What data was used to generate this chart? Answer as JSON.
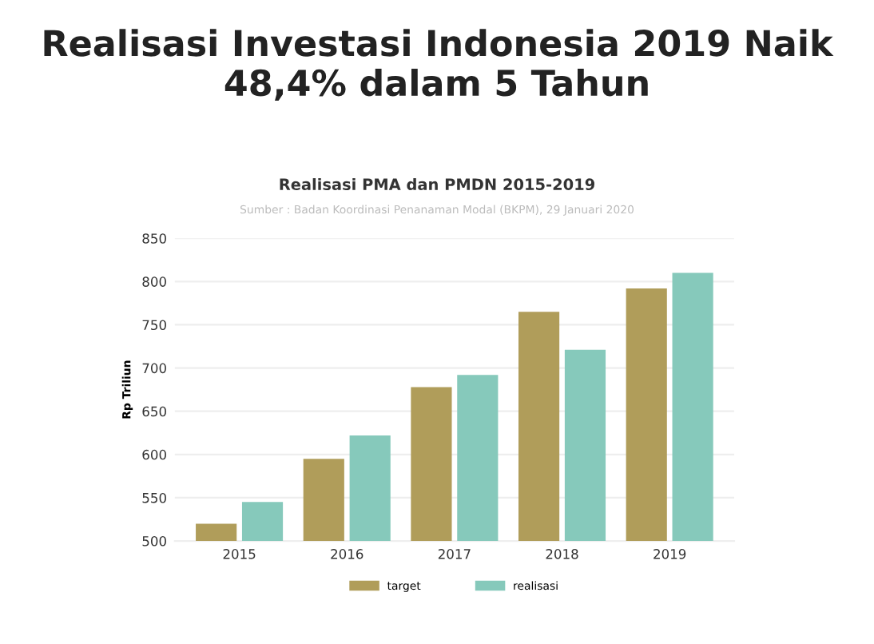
{
  "chart_data": {
    "type": "bar",
    "title": "Realisasi Investasi Indonesia 2019 Naik\n48,4% dalam 5 Tahun",
    "subtitle": "Realisasi PMA dan PMDN 2015-2019",
    "annotations": [
      "Sumber : Badan Koordinasi Penanaman Modal (BKPM), 29 Januari 2020"
    ],
    "ylabel": "Rp Triliun",
    "categories": [
      "2015",
      "2016",
      "2017",
      "2018",
      "2019"
    ],
    "series": [
      {
        "name": "target",
        "color": "#b09d5a",
        "values": [
          520,
          595,
          678,
          765,
          792
        ]
      },
      {
        "name": "realisasi",
        "color": "#86c9bb",
        "values": [
          545,
          622,
          692,
          721,
          810
        ]
      }
    ],
    "ylim": [
      500,
      850
    ],
    "yticks": [
      500,
      550,
      600,
      650,
      700,
      750,
      800,
      850
    ],
    "grid": "y",
    "legend": "bottom"
  }
}
